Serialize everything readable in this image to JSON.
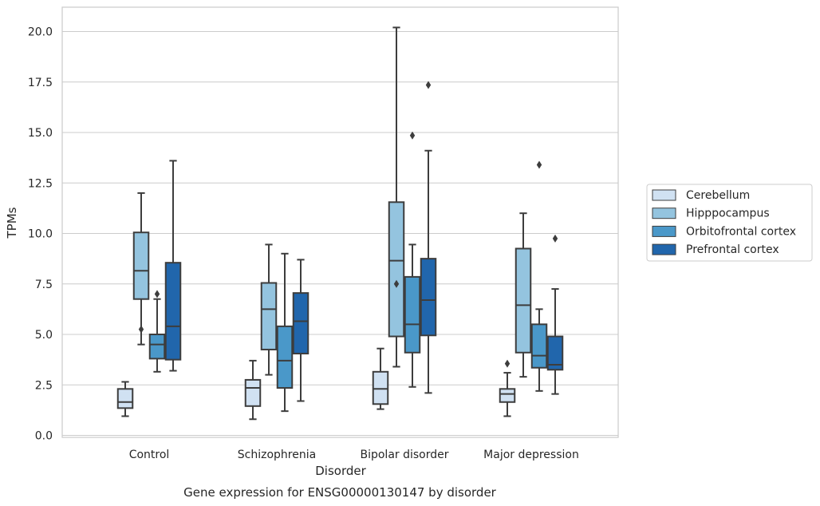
{
  "chart_data": {
    "type": "box",
    "title": "Gene expression for ENSG00000130147 by disorder",
    "xlabel": "Disorder",
    "ylabel": "TPMs",
    "ylim": [
      -0.2,
      21.2
    ],
    "yticks": [
      0.0,
      2.5,
      5.0,
      7.5,
      10.0,
      12.5,
      15.0,
      17.5,
      20.0
    ],
    "ytick_labels": [
      "0.0",
      "2.5",
      "5.0",
      "7.5",
      "10.0",
      "12.5",
      "15.0",
      "17.5",
      "20.0"
    ],
    "grid": true,
    "legend_position": "right",
    "categories": [
      "Control",
      "Schizophrenia",
      "Bipolar disorder",
      "Major depression"
    ],
    "series": [
      {
        "name": "Cerebellum",
        "color": "#d0e1f2",
        "boxes": [
          {
            "whisker_low": 0.95,
            "q1": 1.35,
            "median": 1.65,
            "q3": 2.3,
            "whisker_high": 2.65,
            "outliers": []
          },
          {
            "whisker_low": 0.8,
            "q1": 1.45,
            "median": 2.35,
            "q3": 2.75,
            "whisker_high": 3.7,
            "outliers": []
          },
          {
            "whisker_low": 1.3,
            "q1": 1.55,
            "median": 2.3,
            "q3": 3.15,
            "whisker_high": 4.3,
            "outliers": []
          },
          {
            "whisker_low": 0.95,
            "q1": 1.65,
            "median": 2.05,
            "q3": 2.3,
            "whisker_high": 3.1,
            "outliers": [
              3.55
            ]
          }
        ]
      },
      {
        "name": "Hipppocampus",
        "color": "#94c4df",
        "boxes": [
          {
            "whisker_low": 4.5,
            "q1": 6.75,
            "median": 8.15,
            "q3": 10.05,
            "whisker_high": 12.0,
            "outliers": [
              5.25
            ]
          },
          {
            "whisker_low": 3.0,
            "q1": 4.25,
            "median": 6.25,
            "q3": 7.55,
            "whisker_high": 9.45,
            "outliers": []
          },
          {
            "whisker_low": 3.4,
            "q1": 4.9,
            "median": 8.65,
            "q3": 11.55,
            "whisker_high": 20.2,
            "outliers": [
              7.5
            ]
          },
          {
            "whisker_low": 2.9,
            "q1": 4.1,
            "median": 6.45,
            "q3": 9.25,
            "whisker_high": 11.0,
            "outliers": []
          }
        ]
      },
      {
        "name": "Orbitofrontal cortex",
        "color": "#4a98c9",
        "boxes": [
          {
            "whisker_low": 3.15,
            "q1": 3.8,
            "median": 4.5,
            "q3": 5.0,
            "whisker_high": 6.75,
            "outliers": [
              7.0
            ]
          },
          {
            "whisker_low": 1.2,
            "q1": 2.35,
            "median": 3.7,
            "q3": 5.4,
            "whisker_high": 9.0,
            "outliers": []
          },
          {
            "whisker_low": 2.4,
            "q1": 4.1,
            "median": 5.5,
            "q3": 7.85,
            "whisker_high": 9.45,
            "outliers": [
              14.85
            ]
          },
          {
            "whisker_low": 2.2,
            "q1": 3.35,
            "median": 3.95,
            "q3": 5.5,
            "whisker_high": 6.25,
            "outliers": [
              13.4
            ]
          }
        ]
      },
      {
        "name": "Prefrontal cortex",
        "color": "#2166ac",
        "boxes": [
          {
            "whisker_low": 3.2,
            "q1": 3.75,
            "median": 5.4,
            "q3": 8.55,
            "whisker_high": 13.6,
            "outliers": []
          },
          {
            "whisker_low": 1.7,
            "q1": 4.05,
            "median": 5.65,
            "q3": 7.05,
            "whisker_high": 8.7,
            "outliers": []
          },
          {
            "whisker_low": 2.1,
            "q1": 4.95,
            "median": 6.7,
            "q3": 8.75,
            "whisker_high": 14.1,
            "outliers": [
              17.35
            ]
          },
          {
            "whisker_low": 2.05,
            "q1": 3.25,
            "median": 3.5,
            "q3": 4.9,
            "whisker_high": 7.25,
            "outliers": [
              9.75
            ]
          }
        ]
      }
    ]
  }
}
